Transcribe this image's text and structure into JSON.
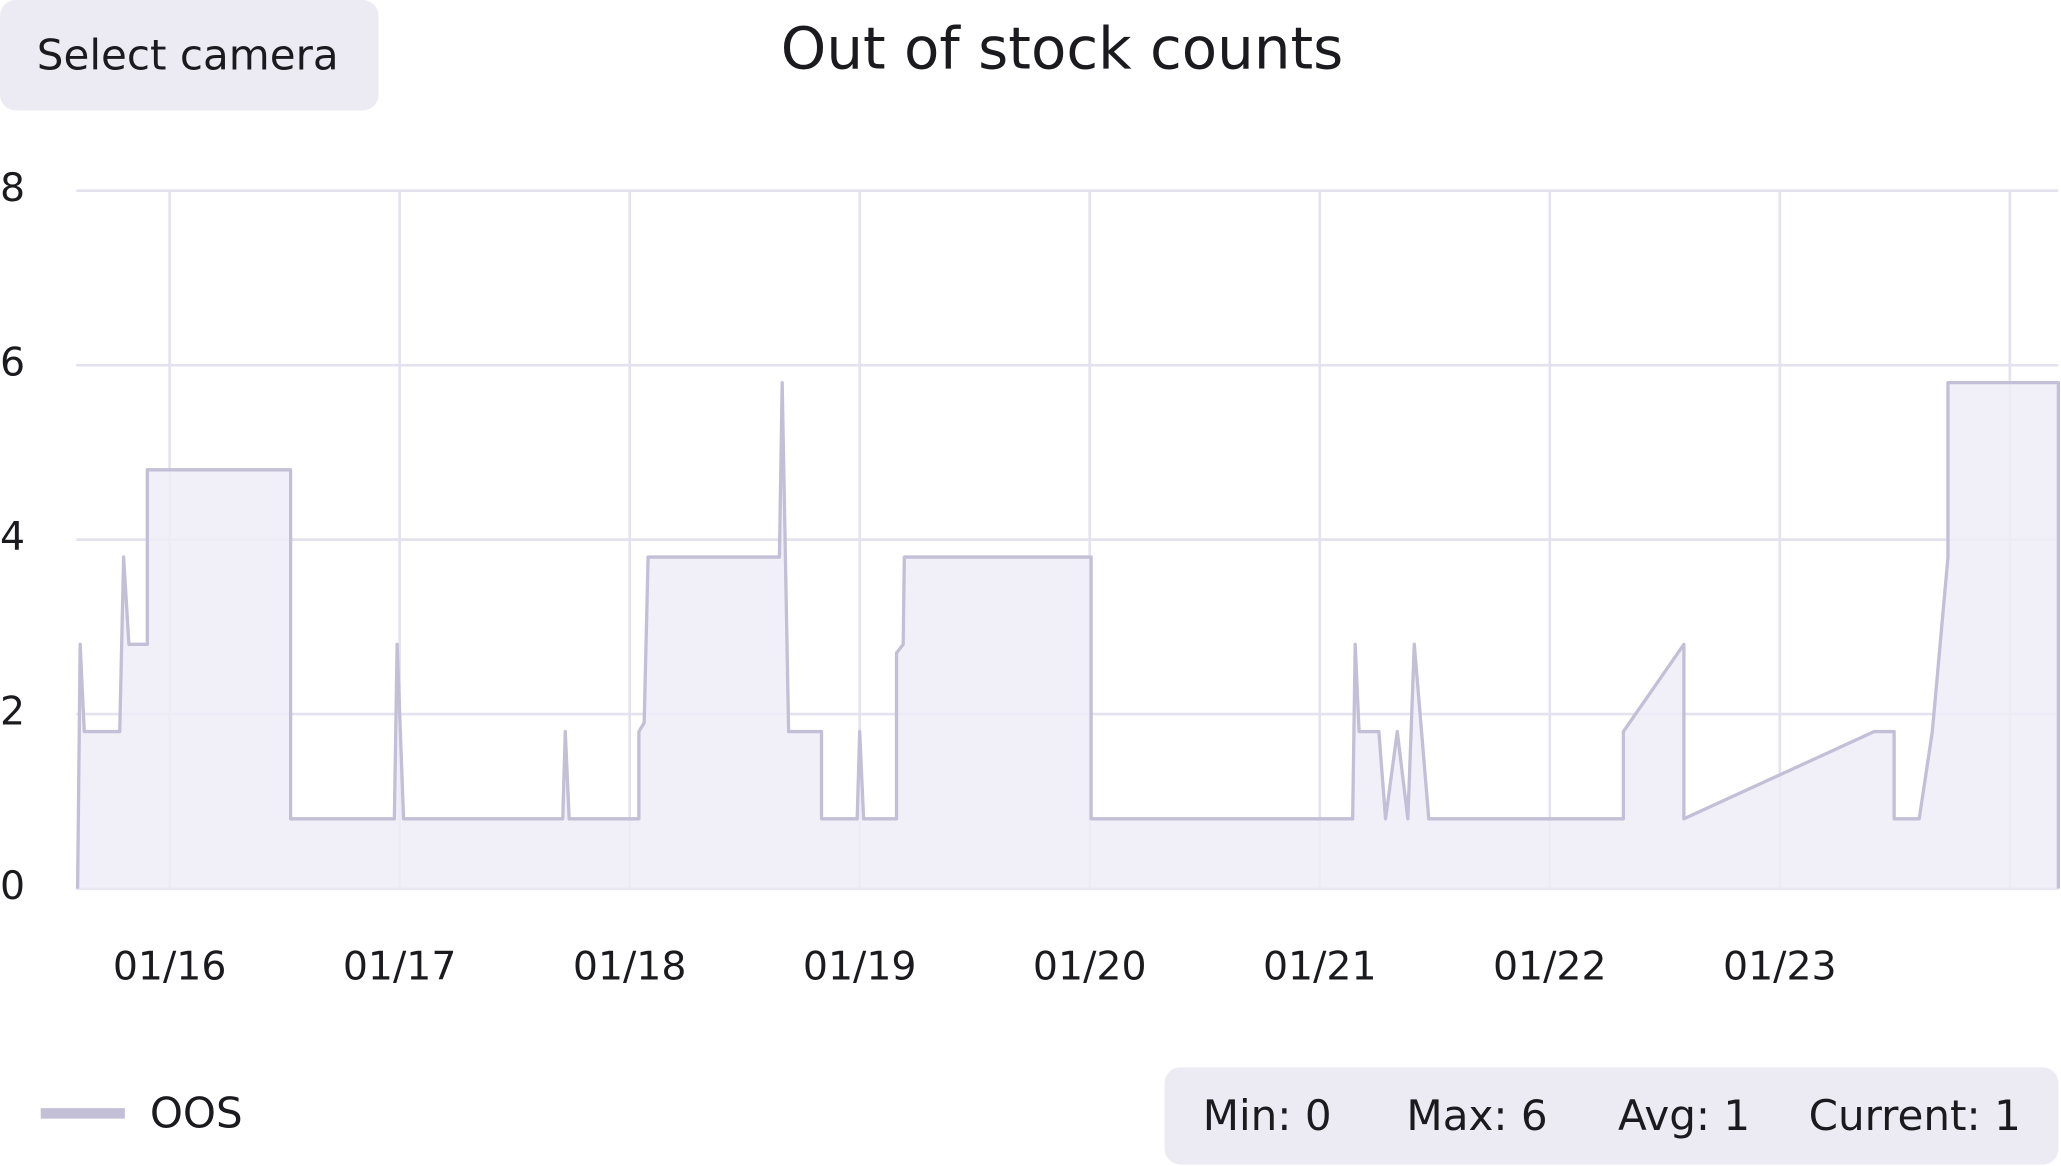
{
  "button": "Select camera",
  "stats": [
    "Min: 0",
    "Max: 6",
    "Avg: 1",
    "Current: 1"
  ],
  "chart_data": {
    "type": "line",
    "title": "Out of stock counts",
    "x": [
      15.6,
      15.611,
      15.629,
      15.783,
      15.8,
      15.823,
      15.903,
      15.903,
      16.526,
      16.526,
      16.977,
      16.989,
      17.017,
      17.709,
      17.72,
      17.737,
      18.04,
      18.04,
      18.063,
      18.08,
      18.651,
      18.663,
      18.691,
      18.834,
      18.834,
      18.989,
      19.0,
      19.017,
      19.16,
      19.16,
      19.189,
      19.194,
      20.006,
      20.006,
      21.143,
      21.154,
      21.171,
      21.257,
      21.286,
      21.337,
      21.383,
      21.411,
      21.474,
      22.32,
      22.32,
      22.583,
      22.583,
      23.411,
      23.497,
      23.497,
      23.606,
      23.663,
      23.731,
      23.731,
      24.211,
      24.211
    ],
    "series": [
      {
        "name": "OOS",
        "color": "#c2bfd6",
        "fill_color": "#eeecf7",
        "values": [
          0,
          2.8,
          1.8,
          1.8,
          3.8,
          2.8,
          2.8,
          4.8,
          4.8,
          0.8,
          0.8,
          2.8,
          0.8,
          0.8,
          1.8,
          0.8,
          0.8,
          1.8,
          1.9,
          3.8,
          3.8,
          5.8,
          1.8,
          1.8,
          0.8,
          0.8,
          1.8,
          0.8,
          0.8,
          2.7,
          2.8,
          3.8,
          3.8,
          0.8,
          0.8,
          2.8,
          1.8,
          1.8,
          0.8,
          1.8,
          0.8,
          2.8,
          0.8,
          0.8,
          1.8,
          2.8,
          0.8,
          1.8,
          1.8,
          0.8,
          0.8,
          1.8,
          3.8,
          5.8,
          5.8,
          0
        ]
      }
    ],
    "xlim": [
      15.594,
      24.211
    ],
    "xticks": [
      {
        "value": 16,
        "label": "01/16"
      },
      {
        "value": 17,
        "label": "01/17"
      },
      {
        "value": 18,
        "label": "01/18"
      },
      {
        "value": 19,
        "label": "01/19"
      },
      {
        "value": 20,
        "label": "01/20"
      },
      {
        "value": 21,
        "label": "01/21"
      },
      {
        "value": 22,
        "label": "01/22"
      },
      {
        "value": 23,
        "label": "01/23"
      },
      {
        "value": 24,
        "label": null
      }
    ],
    "ylim": [
      0,
      8
    ],
    "yticks": [
      0,
      2,
      4,
      6,
      8
    ],
    "grid": true,
    "grid_color": "#e4e2ee"
  }
}
